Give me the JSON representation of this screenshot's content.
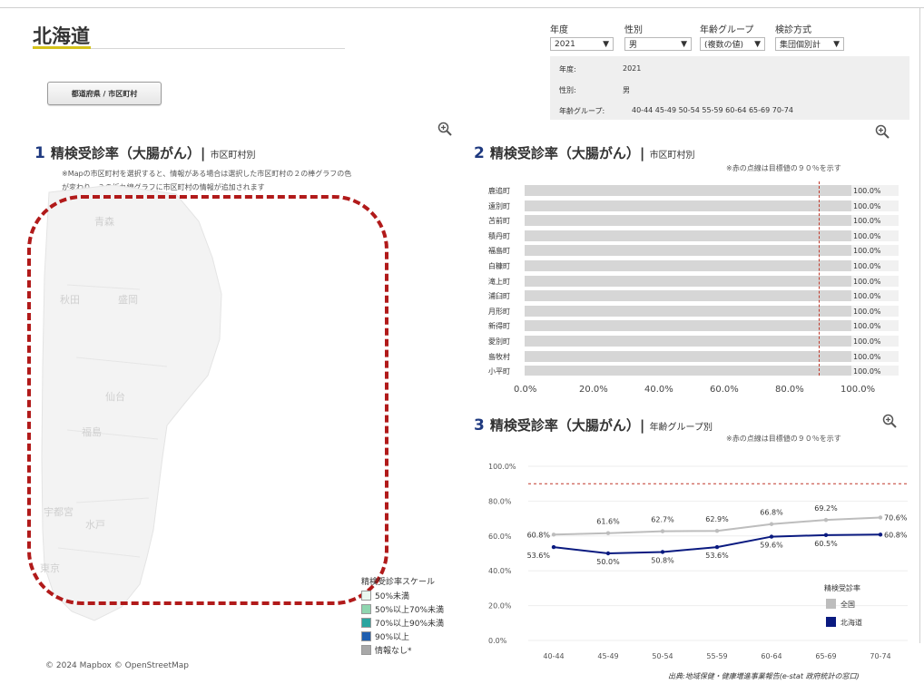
{
  "page": {
    "title": "北海道"
  },
  "nav": {
    "button_label": "都道府県 / 市区町村"
  },
  "filters": [
    {
      "label": "年度",
      "value": "2021"
    },
    {
      "label": "性別",
      "value": "男"
    },
    {
      "label": "年齢グループ",
      "value": "(複数の値)"
    },
    {
      "label": "検診方式",
      "value": "集団個別計"
    }
  ],
  "summary": {
    "year_label": "年度:",
    "year_value": "2021",
    "sex_label": "性別:",
    "sex_value": "男",
    "age_label": "年齢グループ:",
    "age_value": "40-44  45-49  50-54  55-59  60-64  65-69  70-74"
  },
  "section1": {
    "num": "1",
    "title": "精検受診率（大腸がん）|",
    "sub": "市区町村別",
    "note1": "※Mapの市区町村を選択すると、情報がある場合は選択した市区町村の２の棒グラフの色",
    "note2": "が変わり、３の折れ線グラフに市区町村の情報が追加されます"
  },
  "map": {
    "labels": [
      {
        "text": "青森"
      },
      {
        "text": "秋田"
      },
      {
        "text": "盛岡"
      },
      {
        "text": "仙台"
      },
      {
        "text": "福島"
      },
      {
        "text": "宇都宮"
      },
      {
        "text": "水戸"
      },
      {
        "text": "東京"
      }
    ],
    "credit": "© 2024 Mapbox  © OpenStreetMap"
  },
  "legend": {
    "title": "精検受診率スケール",
    "items": [
      {
        "label": "50%未満",
        "color": "#eaf7f0"
      },
      {
        "label": "50%以上70%未満",
        "color": "#8fd6b0"
      },
      {
        "label": "70%以上90%未満",
        "color": "#2aa5a0"
      },
      {
        "label": "90%以上",
        "color": "#1f5fb0"
      },
      {
        "label": "情報なし*",
        "color": "#a8a8a8"
      }
    ]
  },
  "section2": {
    "num": "2",
    "title": "精検受診率（大腸がん）|",
    "sub": "市区町村別",
    "note": "※赤の点線は目標値の９０％を示す"
  },
  "section3": {
    "num": "3",
    "title": "精検受診率（大腸がん）|",
    "sub": "年齢グループ別",
    "note": "※赤の点線は目標値の９０％を示す"
  },
  "chart_data": [
    {
      "type": "bar",
      "orientation": "horizontal",
      "categories": [
        "鹿追町",
        "遠別町",
        "苫前町",
        "積丹町",
        "福島町",
        "白糠町",
        "滝上町",
        "浦臼町",
        "月形町",
        "新得町",
        "愛別町",
        "島牧村",
        "小平町"
      ],
      "values": [
        100.0,
        100.0,
        100.0,
        100.0,
        100.0,
        100.0,
        100.0,
        100.0,
        100.0,
        100.0,
        100.0,
        100.0,
        100.0
      ],
      "value_labels": [
        "100.0%",
        "100.0%",
        "100.0%",
        "100.0%",
        "100.0%",
        "100.0%",
        "100.0%",
        "100.0%",
        "100.0%",
        "100.0%",
        "100.0%",
        "100.0%",
        "100.0%"
      ],
      "xlim": [
        0,
        100
      ],
      "x_ticks": [
        "0.0%",
        "20.0%",
        "40.0%",
        "60.0%",
        "80.0%",
        "100.0%"
      ],
      "target": 90,
      "bar_color": "#d6d6d6",
      "target_color": "#c0392b"
    },
    {
      "type": "line",
      "categories": [
        "40-44",
        "45-49",
        "50-54",
        "55-59",
        "60-64",
        "65-69",
        "70-74"
      ],
      "series": [
        {
          "name": "全国",
          "color": "#bdbdbd",
          "values": [
            60.8,
            61.6,
            62.7,
            62.9,
            66.8,
            69.2,
            70.6
          ],
          "labels": [
            "60.8%",
            "61.6%",
            "62.7%",
            "62.9%",
            "66.8%",
            "69.2%",
            "70.6%"
          ]
        },
        {
          "name": "北海道",
          "color": "#0a1a80",
          "values": [
            53.6,
            50.0,
            50.8,
            53.6,
            59.6,
            60.5,
            60.8
          ],
          "labels": [
            "53.6%",
            "50.0%",
            "50.8%",
            "53.6%",
            "59.6%",
            "60.5%",
            "60.8%"
          ]
        }
      ],
      "ylim": [
        0,
        100
      ],
      "y_ticks": [
        "0.0%",
        "20.0%",
        "40.0%",
        "60.0%",
        "80.0%",
        "100.0%"
      ],
      "target": 90,
      "target_color": "#c0392b",
      "legend_title": "精検受診率",
      "legend_position": "bottom-right"
    }
  ],
  "source": "出典:地域保健・健康増進事業報告(e-stat 政府統計の窓口)"
}
